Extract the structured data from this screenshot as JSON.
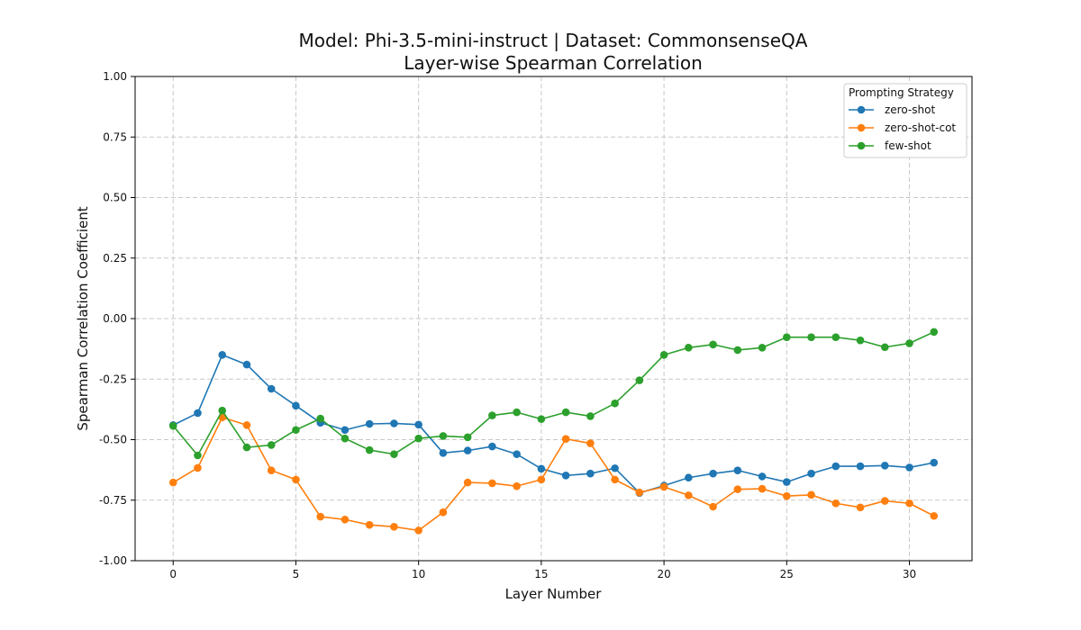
{
  "chart_data": {
    "type": "line",
    "title_line1": "Model: Phi-3.5-mini-instruct | Dataset: CommonsenseQA",
    "title_line2": "Layer-wise Spearman Correlation",
    "xlabel": "Layer Number",
    "ylabel": "Spearman Correlation Coefficient",
    "xlim": [
      -1.55,
      32.55
    ],
    "ylim": [
      -1.0,
      1.0
    ],
    "xticks": [
      0,
      5,
      10,
      15,
      20,
      25,
      30
    ],
    "xtick_labels": [
      "0",
      "5",
      "10",
      "15",
      "20",
      "25",
      "30"
    ],
    "yticks": [
      -1.0,
      -0.75,
      -0.5,
      -0.25,
      0.0,
      0.25,
      0.5,
      0.75,
      1.0
    ],
    "ytick_labels": [
      "-1.00",
      "-0.75",
      "-0.50",
      "-0.25",
      "0.00",
      "0.25",
      "0.50",
      "0.75",
      "1.00"
    ],
    "grid": true,
    "legend": {
      "title": "Prompting Strategy",
      "placement": "top-right"
    },
    "x": [
      0,
      1,
      2,
      3,
      4,
      5,
      6,
      7,
      8,
      9,
      10,
      11,
      12,
      13,
      14,
      15,
      16,
      17,
      18,
      19,
      20,
      21,
      22,
      23,
      24,
      25,
      26,
      27,
      28,
      29,
      30,
      31
    ],
    "series": [
      {
        "name": "zero-shot",
        "color": "#1f77b4",
        "values": [
          -0.44,
          -0.39,
          -0.15,
          -0.19,
          -0.29,
          -0.36,
          -0.43,
          -0.46,
          -0.435,
          -0.433,
          -0.438,
          -0.555,
          -0.545,
          -0.528,
          -0.56,
          -0.62,
          -0.648,
          -0.64,
          -0.618,
          -0.72,
          -0.69,
          -0.657,
          -0.64,
          -0.627,
          -0.652,
          -0.675,
          -0.64,
          -0.61,
          -0.61,
          -0.607,
          -0.615,
          -0.595
        ]
      },
      {
        "name": "zero-shot-cot",
        "color": "#ff7f0e",
        "values": [
          -0.677,
          -0.617,
          -0.408,
          -0.44,
          -0.627,
          -0.665,
          -0.818,
          -0.83,
          -0.852,
          -0.86,
          -0.875,
          -0.8,
          -0.677,
          -0.68,
          -0.692,
          -0.665,
          -0.497,
          -0.515,
          -0.665,
          -0.718,
          -0.695,
          -0.73,
          -0.777,
          -0.705,
          -0.703,
          -0.733,
          -0.728,
          -0.763,
          -0.78,
          -0.753,
          -0.763,
          -0.815
        ]
      },
      {
        "name": "few-shot",
        "color": "#2ca02c",
        "values": [
          -0.443,
          -0.565,
          -0.38,
          -0.532,
          -0.522,
          -0.46,
          -0.413,
          -0.495,
          -0.543,
          -0.56,
          -0.495,
          -0.485,
          -0.49,
          -0.4,
          -0.387,
          -0.415,
          -0.387,
          -0.403,
          -0.35,
          -0.255,
          -0.15,
          -0.12,
          -0.107,
          -0.13,
          -0.12,
          -0.077,
          -0.077,
          -0.077,
          -0.09,
          -0.118,
          -0.102,
          -0.055
        ]
      }
    ]
  }
}
